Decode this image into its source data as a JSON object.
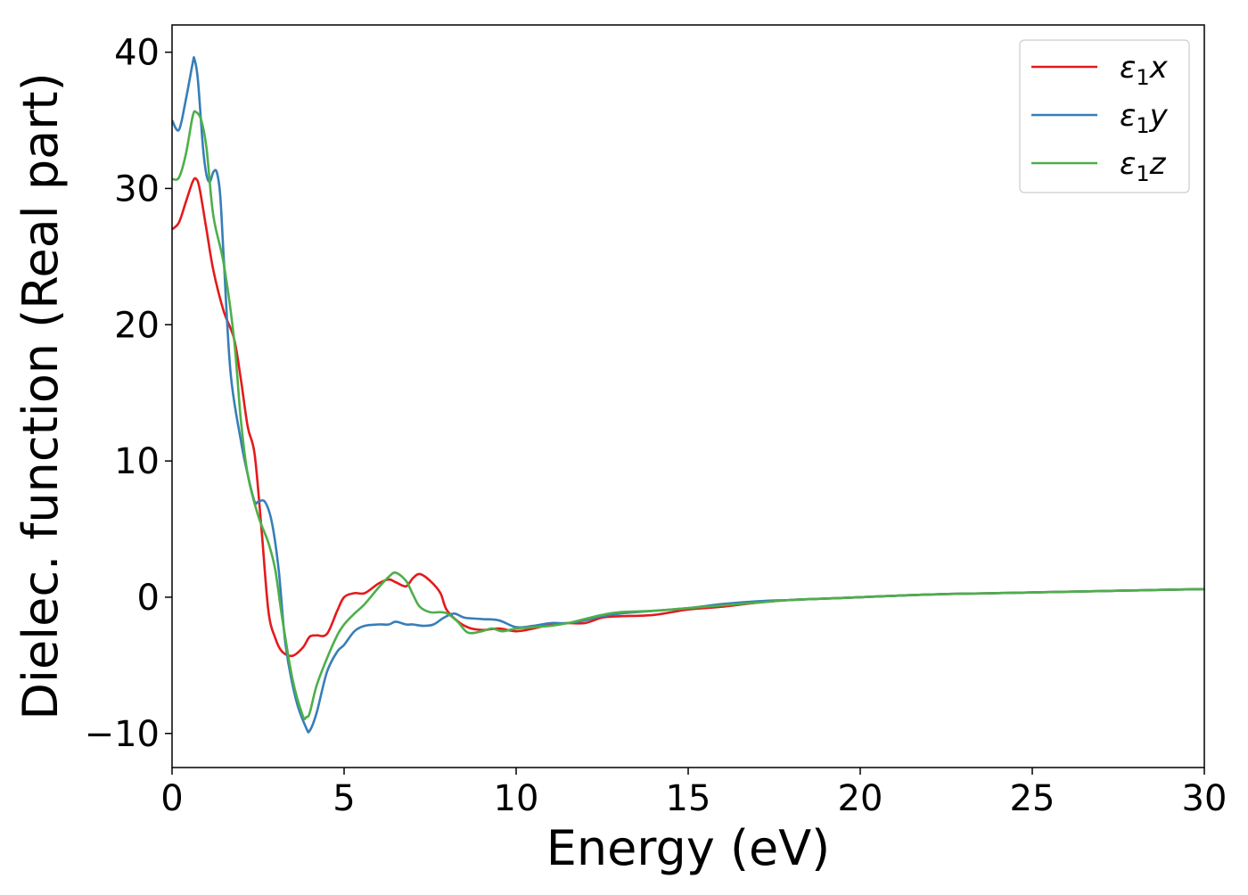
{
  "chart_data": {
    "type": "line",
    "title": "",
    "xlabel": "Energy (eV)",
    "ylabel": "Dielec. function (Real part)",
    "xlim": [
      0,
      30
    ],
    "ylim": [
      -12.5,
      42
    ],
    "grid": false,
    "legend_position": "top-right",
    "xticks": [
      0,
      5,
      10,
      15,
      20,
      25,
      30
    ],
    "xtick_labels": [
      "0",
      "5",
      "10",
      "15",
      "20",
      "25",
      "30"
    ],
    "yticks": [
      -10,
      0,
      10,
      20,
      30,
      40
    ],
    "ytick_labels": [
      "−10",
      "0",
      "10",
      "20",
      "30",
      "40"
    ],
    "series": [
      {
        "name": "ε₁x",
        "name_main": "ε",
        "name_sub": "1",
        "name_tail": "x",
        "color": "#e41a1c",
        "x": [
          0,
          0.2,
          0.4,
          0.6,
          0.7,
          0.8,
          1.0,
          1.2,
          1.5,
          1.8,
          2.0,
          2.2,
          2.4,
          2.6,
          2.8,
          3.0,
          3.2,
          3.5,
          3.8,
          4.0,
          4.2,
          4.5,
          4.8,
          5.0,
          5.3,
          5.6,
          6.0,
          6.3,
          6.5,
          6.8,
          7.0,
          7.2,
          7.5,
          7.8,
          8.0,
          8.5,
          9.0,
          9.5,
          10.0,
          10.5,
          11.0,
          11.5,
          12.0,
          12.5,
          13.0,
          14.0,
          15.0,
          16.0,
          17.0,
          18.0,
          19.0,
          20.0,
          22.0,
          24.0,
          26.0,
          28.0,
          30.0
        ],
        "y": [
          27.0,
          27.5,
          29.0,
          30.5,
          30.7,
          30.0,
          27.0,
          24.0,
          21.0,
          19.0,
          16.0,
          12.5,
          10.5,
          5.0,
          -1.0,
          -3.0,
          -4.0,
          -4.3,
          -3.7,
          -2.9,
          -2.8,
          -2.7,
          -1.0,
          0.0,
          0.3,
          0.3,
          1.0,
          1.3,
          1.1,
          0.8,
          1.4,
          1.7,
          1.2,
          0.3,
          -1.0,
          -2.1,
          -2.4,
          -2.3,
          -2.5,
          -2.3,
          -2.0,
          -1.9,
          -1.9,
          -1.5,
          -1.4,
          -1.3,
          -0.9,
          -0.7,
          -0.4,
          -0.2,
          -0.1,
          0.0,
          0.2,
          0.3,
          0.4,
          0.5,
          0.6
        ]
      },
      {
        "name": "ε₁y",
        "name_main": "ε",
        "name_sub": "1",
        "name_tail": "y",
        "color": "#377eb8",
        "x": [
          0,
          0.2,
          0.4,
          0.6,
          0.65,
          0.75,
          0.9,
          1.0,
          1.1,
          1.2,
          1.3,
          1.4,
          1.5,
          1.7,
          2.0,
          2.2,
          2.4,
          2.5,
          2.7,
          2.9,
          3.1,
          3.3,
          3.6,
          3.9,
          4.0,
          4.2,
          4.5,
          4.8,
          5.0,
          5.3,
          5.6,
          6.0,
          6.3,
          6.5,
          6.8,
          7.0,
          7.3,
          7.6,
          7.9,
          8.2,
          8.5,
          9.0,
          9.5,
          10.0,
          10.5,
          11.0,
          11.5,
          12.0,
          12.5,
          13.0,
          14.0,
          15.0,
          16.0,
          17.0,
          18.0,
          19.0,
          20.0,
          22.0,
          24.0,
          26.0,
          28.0,
          30.0
        ],
        "y": [
          35.0,
          34.3,
          36.5,
          39.2,
          39.5,
          38.0,
          33.0,
          31.0,
          30.5,
          31.2,
          31.2,
          29.5,
          25.0,
          16.5,
          11.5,
          9.0,
          7.0,
          7.0,
          7.0,
          5.5,
          2.0,
          -3.5,
          -7.5,
          -9.6,
          -9.8,
          -8.5,
          -5.5,
          -4.0,
          -3.5,
          -2.5,
          -2.1,
          -2.0,
          -2.0,
          -1.8,
          -2.0,
          -2.0,
          -2.1,
          -2.0,
          -1.5,
          -1.2,
          -1.5,
          -1.6,
          -1.7,
          -2.2,
          -2.1,
          -1.9,
          -1.9,
          -1.7,
          -1.4,
          -1.2,
          -1.0,
          -0.8,
          -0.5,
          -0.3,
          -0.2,
          -0.1,
          0.0,
          0.2,
          0.3,
          0.4,
          0.5,
          0.6
        ]
      },
      {
        "name": "ε₁z",
        "name_main": "ε",
        "name_sub": "1",
        "name_tail": "z",
        "color": "#4daf4a",
        "x": [
          0,
          0.2,
          0.4,
          0.6,
          0.7,
          0.85,
          1.0,
          1.2,
          1.5,
          1.8,
          2.0,
          2.2,
          2.5,
          2.8,
          3.0,
          3.2,
          3.5,
          3.8,
          3.9,
          4.0,
          4.2,
          4.5,
          4.8,
          5.0,
          5.3,
          5.6,
          6.0,
          6.3,
          6.5,
          6.8,
          7.0,
          7.2,
          7.5,
          7.8,
          8.0,
          8.3,
          8.6,
          9.0,
          9.3,
          9.6,
          10.0,
          10.5,
          11.0,
          11.5,
          12.0,
          12.5,
          13.0,
          14.0,
          15.0,
          16.0,
          17.0,
          18.0,
          19.0,
          20.0,
          22.0,
          24.0,
          26.0,
          28.0,
          30.0
        ],
        "y": [
          30.7,
          30.8,
          32.5,
          35.3,
          35.6,
          35.0,
          33.0,
          28.0,
          24.5,
          19.0,
          13.0,
          9.0,
          6.0,
          4.0,
          2.0,
          -1.5,
          -6.0,
          -8.7,
          -8.8,
          -8.5,
          -6.5,
          -4.5,
          -2.8,
          -2.0,
          -1.2,
          -0.5,
          0.7,
          1.5,
          1.8,
          1.2,
          0.2,
          -0.7,
          -1.1,
          -1.1,
          -1.2,
          -1.8,
          -2.6,
          -2.5,
          -2.3,
          -2.5,
          -2.3,
          -2.2,
          -2.1,
          -1.9,
          -1.6,
          -1.3,
          -1.1,
          -1.0,
          -0.8,
          -0.6,
          -0.4,
          -0.2,
          -0.1,
          0.0,
          0.2,
          0.3,
          0.4,
          0.5,
          0.6
        ]
      }
    ]
  }
}
